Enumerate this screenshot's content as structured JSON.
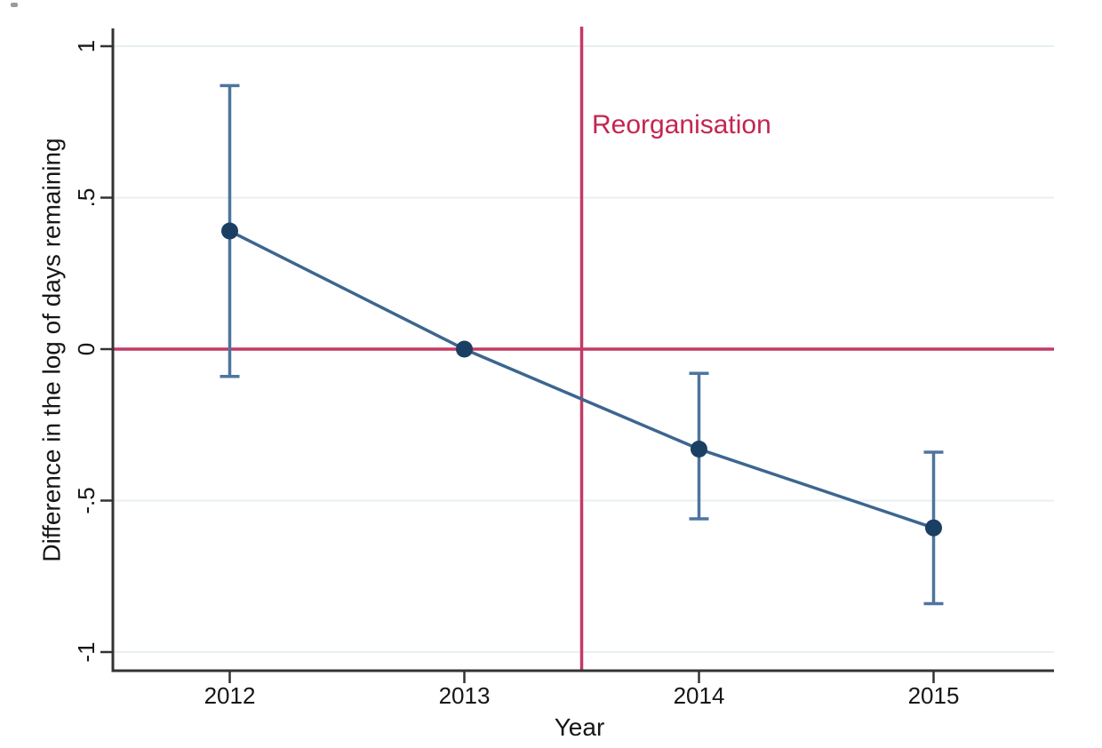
{
  "figure": {
    "background": "#ffffff"
  },
  "chart_data": {
    "type": "line",
    "subtype": "event-study-with-error-bars",
    "title": "",
    "xlabel": "Year",
    "ylabel": "Difference in the log of days remaining",
    "x": [
      2012,
      2013,
      2014,
      2015
    ],
    "series": [
      {
        "name": "point-estimate",
        "values": [
          0.39,
          0,
          -0.33,
          -0.59
        ],
        "ci_low": [
          -0.09,
          null,
          -0.56,
          -0.84
        ],
        "ci_high": [
          0.87,
          null,
          -0.08,
          -0.34
        ]
      }
    ],
    "xticks": [
      "2012",
      "2013",
      "2014",
      "2015"
    ],
    "yticks": [
      {
        "value": 1,
        "label": "1"
      },
      {
        "value": 0.5,
        "label": ".5"
      },
      {
        "value": 0,
        "label": "0"
      },
      {
        "value": -0.5,
        "label": "-.5"
      },
      {
        "value": -1,
        "label": "-1"
      }
    ],
    "xlim": [
      2011.5,
      2015.5
    ],
    "ylim": [
      -1.06,
      1.06
    ],
    "grid": "horizontal",
    "legend": "none",
    "reference_lines": {
      "horizontal": {
        "value": 0
      },
      "vertical": {
        "value": 2013.5,
        "label": "Reorganisation"
      }
    },
    "colors": {
      "marker": "#1b3e63",
      "line": "#3c668f",
      "errorbar": "#4d759e",
      "reference": "#c43a64",
      "reference_label": "#c42552",
      "gridline": "#e8eff3",
      "axis": "#333333",
      "text": "#161616"
    }
  }
}
